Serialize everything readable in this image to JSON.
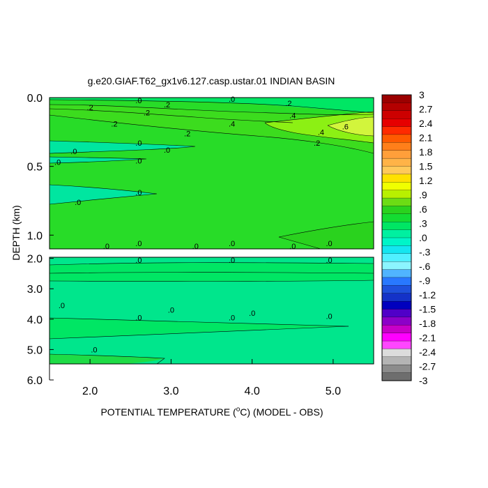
{
  "chart_data": {
    "type": "heatmap",
    "title": "g.e20.GIAF.T62_gx1v6.127.casp.ustar.01 INDIAN BASIN",
    "xlabel_main": "POTENTIAL TEMPERATURE (",
    "xlabel_sup": "o",
    "xlabel_end": "C) (MODEL - OBS)",
    "ylabel": "DEPTH (km)",
    "xlim": [
      1.5,
      5.5
    ],
    "x_ticks": [
      "2.0",
      "3.0",
      "4.0",
      "5.0"
    ],
    "panels": [
      {
        "name": "upper",
        "ylim": [
          0.0,
          1.1
        ],
        "y_ticks": [
          "0.0",
          "0.5",
          "1.0"
        ],
        "contour_labels": [
          {
            "text": ".0",
            "x": 2.6,
            "y": 0.02
          },
          {
            "text": ".0",
            "x": 3.75,
            "y": 0.01
          },
          {
            "text": ".2",
            "x": 2.0,
            "y": 0.07
          },
          {
            "text": ".2",
            "x": 2.95,
            "y": 0.05
          },
          {
            "text": ".2",
            "x": 4.45,
            "y": 0.04
          },
          {
            "text": ".2",
            "x": 2.7,
            "y": 0.11
          },
          {
            "text": ".2",
            "x": 2.3,
            "y": 0.19
          },
          {
            "text": ".4",
            "x": 4.5,
            "y": 0.13
          },
          {
            "text": ".4",
            "x": 3.75,
            "y": 0.19
          },
          {
            "text": ".4",
            "x": 4.85,
            "y": 0.25
          },
          {
            "text": ".6",
            "x": 5.15,
            "y": 0.21
          },
          {
            "text": ".2",
            "x": 3.2,
            "y": 0.26
          },
          {
            "text": ".2",
            "x": 4.8,
            "y": 0.33
          },
          {
            "text": ".0",
            "x": 2.6,
            "y": 0.33
          },
          {
            "text": ".0",
            "x": 1.8,
            "y": 0.39
          },
          {
            "text": ".0",
            "x": 2.95,
            "y": 0.38
          },
          {
            "text": ".0",
            "x": 2.6,
            "y": 0.46
          },
          {
            "text": ".0",
            "x": 1.6,
            "y": 0.47
          },
          {
            "text": ".0",
            "x": 2.6,
            "y": 0.69
          },
          {
            "text": ".0",
            "x": 1.85,
            "y": 0.76
          }
        ]
      },
      {
        "name": "lower",
        "ylim": [
          1.0,
          6.0
        ],
        "y_ticks": [
          "2.0",
          "3.0",
          "4.0",
          "5.0",
          "6.0"
        ],
        "contour_labels": [
          {
            "text": ".0",
            "x": 2.6,
            "y": 1.5
          },
          {
            "text": ".0",
            "x": 3.75,
            "y": 1.5
          },
          {
            "text": ".0",
            "x": 4.95,
            "y": 1.5
          },
          {
            "text": ".0",
            "x": 2.2,
            "y": 1.6
          },
          {
            "text": ".0",
            "x": 3.3,
            "y": 1.6
          },
          {
            "text": ".0",
            "x": 4.5,
            "y": 1.6
          },
          {
            "text": ".0",
            "x": 2.6,
            "y": 2.05
          },
          {
            "text": ".0",
            "x": 3.75,
            "y": 2.05
          },
          {
            "text": ".0",
            "x": 4.95,
            "y": 2.05
          },
          {
            "text": ".0",
            "x": 1.65,
            "y": 3.55
          },
          {
            "text": ".0",
            "x": 3.0,
            "y": 3.7
          },
          {
            "text": ".0",
            "x": 4.0,
            "y": 3.8
          },
          {
            "text": ".0",
            "x": 2.6,
            "y": 3.95
          },
          {
            "text": ".0",
            "x": 3.75,
            "y": 3.95
          },
          {
            "text": ".0",
            "x": 4.95,
            "y": 3.9
          },
          {
            "text": ".0",
            "x": 2.05,
            "y": 5.0
          }
        ]
      }
    ],
    "colorbar": {
      "labels": [
        "3",
        "2.7",
        "2.4",
        "2.1",
        "1.8",
        "1.5",
        "1.2",
        ".9",
        ".6",
        ".3",
        ".0",
        "-.3",
        "-.6",
        "-.9",
        "-1.2",
        "-1.5",
        "-1.8",
        "-2.1",
        "-2.4",
        "-2.7",
        "-3"
      ],
      "range": [
        -3,
        3
      ],
      "colors": [
        "#9b0000",
        "#b40000",
        "#cd0000",
        "#e60000",
        "#ff2a00",
        "#ff5a00",
        "#ff7f1a",
        "#ff9f3a",
        "#ffb347",
        "#ffc95a",
        "#ffe100",
        "#f0ff00",
        "#b8f000",
        "#6cdc14",
        "#2ad21e",
        "#14dc32",
        "#00e664",
        "#00f0a0",
        "#00f5c8",
        "#14e6f0",
        "#50f0ff",
        "#8cf5ff",
        "#50b4ff",
        "#2878ff",
        "#1e50dc",
        "#1432c8",
        "#0000be",
        "#5000c8",
        "#8c00c8",
        "#c800c8",
        "#ff00ff",
        "#ff46ff",
        "#dcdcdc",
        "#b4b4b4",
        "#8c8c8c",
        "#6e6e6e"
      ]
    }
  }
}
